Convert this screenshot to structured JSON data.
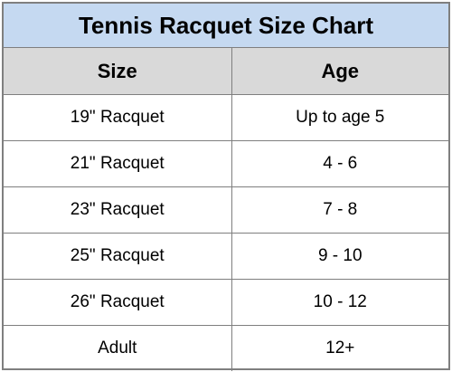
{
  "title": "Tennis Racquet Size Chart",
  "headers": {
    "size": "Size",
    "age": "Age"
  },
  "rows": [
    {
      "size": "19\" Racquet",
      "age": "Up to age 5"
    },
    {
      "size": "21\" Racquet",
      "age": "4 - 6"
    },
    {
      "size": "23\" Racquet",
      "age": "7 - 8"
    },
    {
      "size": "25\" Racquet",
      "age": "9 - 10"
    },
    {
      "size": "26\" Racquet",
      "age": "10 - 12"
    },
    {
      "size": "Adult",
      "age": "12+"
    }
  ],
  "colors": {
    "title_background": "#c5d9f1",
    "header_background": "#d9d9d9",
    "border": "#7f7f7f"
  }
}
